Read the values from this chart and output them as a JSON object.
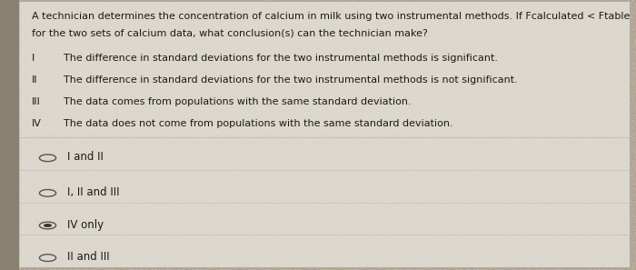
{
  "background_color": "#b5a898",
  "panel_color": "#ddd8ce",
  "border_color": "#aaaaaa",
  "question_text_line1": "A technician determines the concentration of calcium in milk using two instrumental methods. If Fcalculated < Ftable",
  "question_text_line2": "for the two sets of calcium data, what conclusion(s) can the technician make?",
  "statements": [
    {
      "label": "I",
      "text": "The difference in standard deviations for the two instrumental methods is significant."
    },
    {
      "label": "II",
      "text": "The difference in standard deviations for the two instrumental methods is not significant."
    },
    {
      "label": "III",
      "text": "The data comes from populations with the same standard deviation."
    },
    {
      "label": "IV",
      "text": "The data does not come from populations with the same standard deviation."
    }
  ],
  "choices": [
    {
      "text": "I and II",
      "selected": false
    },
    {
      "text": "I, II and III",
      "selected": false
    },
    {
      "text": "IV only",
      "selected": true
    },
    {
      "text": "II and III",
      "selected": false
    }
  ],
  "question_fontsize": 8.0,
  "statement_fontsize": 8.0,
  "choice_fontsize": 8.5,
  "text_color": "#1a1a1a",
  "radio_color": "#555555",
  "radio_selected_fill": "#333333"
}
